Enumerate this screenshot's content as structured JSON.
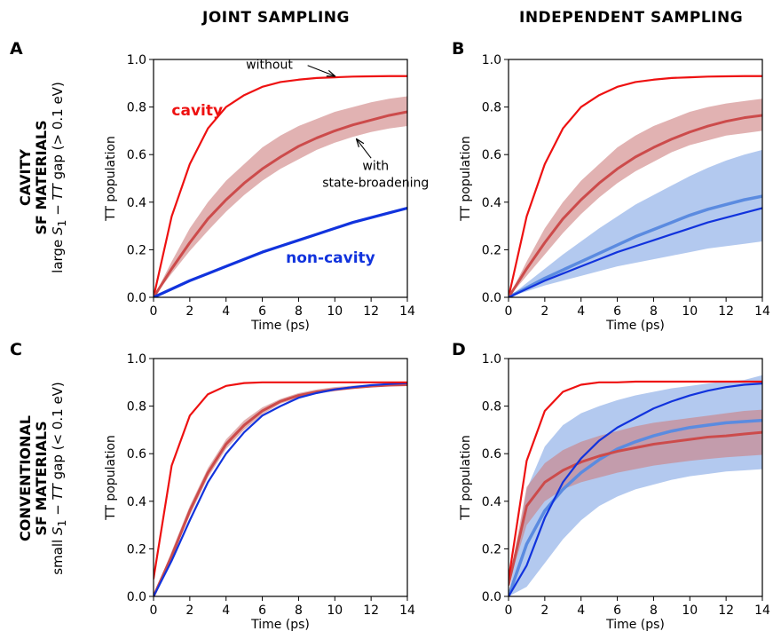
{
  "column_titles": [
    "JOINT SAMPLING",
    "INDEPENDENT SAMPLING"
  ],
  "rows": [
    {
      "title_line1": "CAVITY",
      "title_line2": "SF MATERIALS",
      "subtitle_pre": "large ",
      "subtitle_sym1": "S",
      "subtitle_sub1": "1",
      "subtitle_mid": " − ",
      "subtitle_sym2": "TT",
      "subtitle_post": " gap (> 0.1 eV)"
    },
    {
      "title_line1": "CONVENTIONAL",
      "title_line2": "SF MATERIALS",
      "subtitle_pre": "small ",
      "subtitle_sym1": "S",
      "subtitle_sub1": "1",
      "subtitle_mid": " − ",
      "subtitle_sym2": "TT",
      "subtitle_post": " gap (< 0.1 eV)"
    }
  ],
  "colors": {
    "cavity": "#ee1111",
    "cavity_broadened": "#cc4b4b",
    "cavity_band": "#cd7f7f",
    "noncavity": "#1133dd",
    "noncavity_broadened": "#5b8be0",
    "noncavity_band": "#8fb0e8"
  },
  "chart_data": [
    {
      "panel": "A",
      "type": "line",
      "xlabel": "Time (ps)",
      "ylabel": "TT population",
      "xlim": [
        0,
        14
      ],
      "ylim": [
        0,
        1.0
      ],
      "xticks": [
        0,
        2,
        4,
        6,
        8,
        10,
        12,
        14
      ],
      "yticks": [
        0.0,
        0.2,
        0.4,
        0.6,
        0.8,
        1.0
      ],
      "x": [
        0,
        1,
        2,
        3,
        4,
        5,
        6,
        7,
        8,
        9,
        10,
        11,
        12,
        13,
        14
      ],
      "series": [
        {
          "role": "cavity",
          "style": "line",
          "values": [
            0.0,
            0.34,
            0.56,
            0.71,
            0.8,
            0.85,
            0.885,
            0.905,
            0.915,
            0.922,
            0.925,
            0.928,
            0.929,
            0.93,
            0.93
          ]
        },
        {
          "role": "cavity_broadened",
          "style": "band",
          "values": [
            0.0,
            0.12,
            0.23,
            0.33,
            0.41,
            0.48,
            0.54,
            0.59,
            0.635,
            0.67,
            0.7,
            0.725,
            0.745,
            0.765,
            0.78
          ],
          "lower": [
            0.0,
            0.1,
            0.195,
            0.28,
            0.36,
            0.43,
            0.49,
            0.54,
            0.58,
            0.62,
            0.65,
            0.675,
            0.695,
            0.71,
            0.72
          ],
          "upper": [
            0.0,
            0.15,
            0.29,
            0.4,
            0.49,
            0.56,
            0.63,
            0.68,
            0.72,
            0.75,
            0.78,
            0.8,
            0.82,
            0.835,
            0.845
          ]
        },
        {
          "role": "noncavity",
          "style": "line",
          "values": [
            0.0,
            0.035,
            0.07,
            0.1,
            0.13,
            0.16,
            0.19,
            0.215,
            0.24,
            0.265,
            0.29,
            0.315,
            0.335,
            0.355,
            0.375
          ]
        }
      ],
      "labels": [
        {
          "text": "cavity",
          "role": "cavity",
          "at": [
            1.0,
            0.765
          ],
          "size": 17,
          "bold": true,
          "anchor": "start"
        },
        {
          "text": "non-cavity",
          "role": "noncavity",
          "at": [
            7.3,
            0.145
          ],
          "size": 17,
          "bold": true,
          "anchor": "start"
        },
        {
          "text": "without",
          "role": "plain",
          "at": [
            5.1,
            0.96
          ],
          "size": 14,
          "bold": false,
          "anchor": "start"
        },
        {
          "text": "with",
          "role": "plain",
          "at": [
            12.25,
            0.535
          ],
          "size": 14,
          "bold": false,
          "anchor": "middle"
        },
        {
          "text": "state-broadening",
          "role": "plain",
          "at": [
            12.25,
            0.465
          ],
          "size": 14,
          "bold": false,
          "anchor": "middle"
        }
      ],
      "arrows": [
        {
          "from": [
            8.5,
            0.975
          ],
          "to": [
            10.0,
            0.93
          ]
        },
        {
          "from": [
            12.0,
            0.585
          ],
          "to": [
            11.2,
            0.665
          ]
        }
      ]
    },
    {
      "panel": "B",
      "type": "line",
      "xlabel": "Time (ps)",
      "ylabel": "TT population",
      "xlim": [
        0,
        14
      ],
      "ylim": [
        0,
        1.0
      ],
      "xticks": [
        0,
        2,
        4,
        6,
        8,
        10,
        12,
        14
      ],
      "yticks": [
        0.0,
        0.2,
        0.4,
        0.6,
        0.8,
        1.0
      ],
      "x": [
        0,
        1,
        2,
        3,
        4,
        5,
        6,
        7,
        8,
        9,
        10,
        11,
        12,
        13,
        14
      ],
      "series": [
        {
          "role": "noncavity_broadened",
          "style": "band",
          "values": [
            0.0,
            0.04,
            0.08,
            0.115,
            0.15,
            0.185,
            0.22,
            0.255,
            0.285,
            0.315,
            0.345,
            0.37,
            0.39,
            0.41,
            0.425
          ],
          "lower": [
            0.0,
            0.025,
            0.05,
            0.07,
            0.09,
            0.11,
            0.13,
            0.145,
            0.16,
            0.175,
            0.19,
            0.205,
            0.215,
            0.225,
            0.235
          ],
          "upper": [
            0.0,
            0.06,
            0.12,
            0.18,
            0.235,
            0.29,
            0.34,
            0.39,
            0.43,
            0.47,
            0.51,
            0.545,
            0.575,
            0.6,
            0.62
          ]
        },
        {
          "role": "cavity",
          "style": "line",
          "values": [
            0.0,
            0.34,
            0.56,
            0.71,
            0.8,
            0.85,
            0.885,
            0.905,
            0.915,
            0.922,
            0.925,
            0.928,
            0.929,
            0.93,
            0.93
          ]
        },
        {
          "role": "cavity_broadened",
          "style": "band",
          "values": [
            0.0,
            0.12,
            0.23,
            0.33,
            0.41,
            0.48,
            0.54,
            0.59,
            0.63,
            0.665,
            0.695,
            0.72,
            0.74,
            0.755,
            0.765
          ],
          "lower": [
            0.0,
            0.09,
            0.18,
            0.27,
            0.35,
            0.42,
            0.48,
            0.53,
            0.57,
            0.61,
            0.64,
            0.66,
            0.68,
            0.69,
            0.7
          ],
          "upper": [
            0.0,
            0.15,
            0.29,
            0.4,
            0.49,
            0.56,
            0.63,
            0.68,
            0.72,
            0.75,
            0.78,
            0.8,
            0.815,
            0.825,
            0.835
          ]
        },
        {
          "role": "noncavity",
          "style": "line",
          "values": [
            0.0,
            0.035,
            0.07,
            0.1,
            0.13,
            0.16,
            0.19,
            0.215,
            0.24,
            0.265,
            0.29,
            0.315,
            0.335,
            0.355,
            0.375
          ]
        }
      ],
      "labels": [],
      "arrows": []
    },
    {
      "panel": "C",
      "type": "line",
      "xlabel": "Time (ps)",
      "ylabel": "TT population",
      "xlim": [
        0,
        14
      ],
      "ylim": [
        0,
        1.0
      ],
      "xticks": [
        0,
        2,
        4,
        6,
        8,
        10,
        12,
        14
      ],
      "yticks": [
        0.0,
        0.2,
        0.4,
        0.6,
        0.8,
        1.0
      ],
      "x": [
        0,
        1,
        2,
        3,
        4,
        5,
        6,
        7,
        8,
        9,
        10,
        11,
        12,
        13,
        14
      ],
      "series": [
        {
          "role": "cavity_broadened",
          "style": "band",
          "values": [
            0.0,
            0.17,
            0.36,
            0.52,
            0.64,
            0.72,
            0.78,
            0.82,
            0.845,
            0.86,
            0.87,
            0.878,
            0.884,
            0.888,
            0.89
          ],
          "lower": [
            0.0,
            0.16,
            0.34,
            0.5,
            0.62,
            0.7,
            0.765,
            0.81,
            0.835,
            0.852,
            0.863,
            0.872,
            0.879,
            0.884,
            0.886
          ],
          "upper": [
            0.0,
            0.19,
            0.38,
            0.54,
            0.66,
            0.74,
            0.795,
            0.83,
            0.855,
            0.87,
            0.88,
            0.886,
            0.891,
            0.894,
            0.896
          ]
        },
        {
          "role": "noncavity",
          "style": "line",
          "values": [
            0.0,
            0.15,
            0.32,
            0.48,
            0.6,
            0.69,
            0.76,
            0.8,
            0.835,
            0.855,
            0.87,
            0.88,
            0.888,
            0.893,
            0.897
          ]
        },
        {
          "role": "cavity",
          "style": "line",
          "values": [
            0.075,
            0.55,
            0.76,
            0.85,
            0.885,
            0.897,
            0.9,
            0.9,
            0.9,
            0.9,
            0.9,
            0.9,
            0.9,
            0.9,
            0.9
          ]
        }
      ],
      "labels": [],
      "arrows": []
    },
    {
      "panel": "D",
      "type": "line",
      "xlabel": "Time (ps)",
      "ylabel": "TT population",
      "xlim": [
        0,
        14
      ],
      "ylim": [
        0,
        1.0
      ],
      "xticks": [
        0,
        2,
        4,
        6,
        8,
        10,
        12,
        14
      ],
      "yticks": [
        0.0,
        0.2,
        0.4,
        0.6,
        0.8,
        1.0
      ],
      "x": [
        0,
        1,
        2,
        3,
        4,
        5,
        6,
        7,
        8,
        9,
        10,
        11,
        12,
        13,
        14
      ],
      "series": [
        {
          "role": "noncavity_broadened",
          "style": "band",
          "values": [
            0.0,
            0.22,
            0.36,
            0.45,
            0.52,
            0.575,
            0.62,
            0.65,
            0.675,
            0.695,
            0.71,
            0.72,
            0.73,
            0.735,
            0.74
          ],
          "lower": [
            0.0,
            0.04,
            0.14,
            0.24,
            0.32,
            0.38,
            0.42,
            0.45,
            0.47,
            0.49,
            0.505,
            0.515,
            0.525,
            0.53,
            0.535
          ],
          "upper": [
            0.0,
            0.45,
            0.63,
            0.72,
            0.77,
            0.8,
            0.825,
            0.845,
            0.86,
            0.875,
            0.885,
            0.895,
            0.905,
            0.91,
            0.93
          ]
        },
        {
          "role": "cavity_broadened",
          "style": "band",
          "values": [
            0.05,
            0.38,
            0.48,
            0.53,
            0.565,
            0.59,
            0.61,
            0.625,
            0.64,
            0.65,
            0.66,
            0.67,
            0.675,
            0.683,
            0.69
          ],
          "lower": [
            0.05,
            0.3,
            0.4,
            0.45,
            0.48,
            0.5,
            0.52,
            0.535,
            0.55,
            0.56,
            0.57,
            0.578,
            0.585,
            0.59,
            0.595
          ],
          "upper": [
            0.05,
            0.46,
            0.56,
            0.615,
            0.65,
            0.675,
            0.695,
            0.715,
            0.73,
            0.74,
            0.75,
            0.76,
            0.77,
            0.78,
            0.785
          ]
        },
        {
          "role": "noncavity",
          "style": "line",
          "values": [
            0.0,
            0.13,
            0.33,
            0.48,
            0.58,
            0.655,
            0.71,
            0.75,
            0.79,
            0.82,
            0.845,
            0.865,
            0.88,
            0.89,
            0.895
          ]
        },
        {
          "role": "cavity",
          "style": "line",
          "values": [
            0.07,
            0.57,
            0.78,
            0.86,
            0.89,
            0.9,
            0.9,
            0.903,
            0.903,
            0.903,
            0.903,
            0.903,
            0.903,
            0.903,
            0.903
          ]
        }
      ],
      "labels": [],
      "arrows": []
    }
  ]
}
